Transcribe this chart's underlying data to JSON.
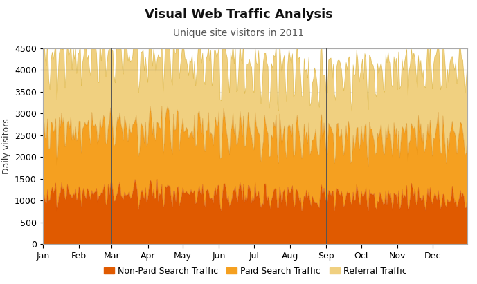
{
  "title": "Visual Web Traffic Analysis",
  "subtitle": "Unique site visitors in 2011",
  "ylabel": "Daily visitors",
  "colors": {
    "nonpaid": "#E05A00",
    "paid": "#F5A020",
    "referral": "#F0D080"
  },
  "legend_labels": [
    "Non-Paid Search Traffic",
    "Paid Search Traffic",
    "Referral Traffic"
  ],
  "ylim": [
    0,
    4500
  ],
  "yticks": [
    0,
    500,
    1000,
    1500,
    2000,
    2500,
    3000,
    3500,
    4000,
    4500
  ],
  "hline": 4000,
  "month_labels": [
    "Jan",
    "Feb",
    "Mar",
    "Apr",
    "May",
    "Jun",
    "Jul",
    "Aug",
    "Sep",
    "Oct",
    "Nov",
    "Dec"
  ],
  "month_starts": [
    0,
    31,
    59,
    90,
    120,
    151,
    181,
    212,
    243,
    273,
    304,
    334
  ],
  "quarter_lines": [
    59,
    151,
    243
  ],
  "background_color": "#ffffff",
  "border_color": "#cccccc",
  "title_fontsize": 13,
  "subtitle_fontsize": 10,
  "axis_fontsize": 9
}
